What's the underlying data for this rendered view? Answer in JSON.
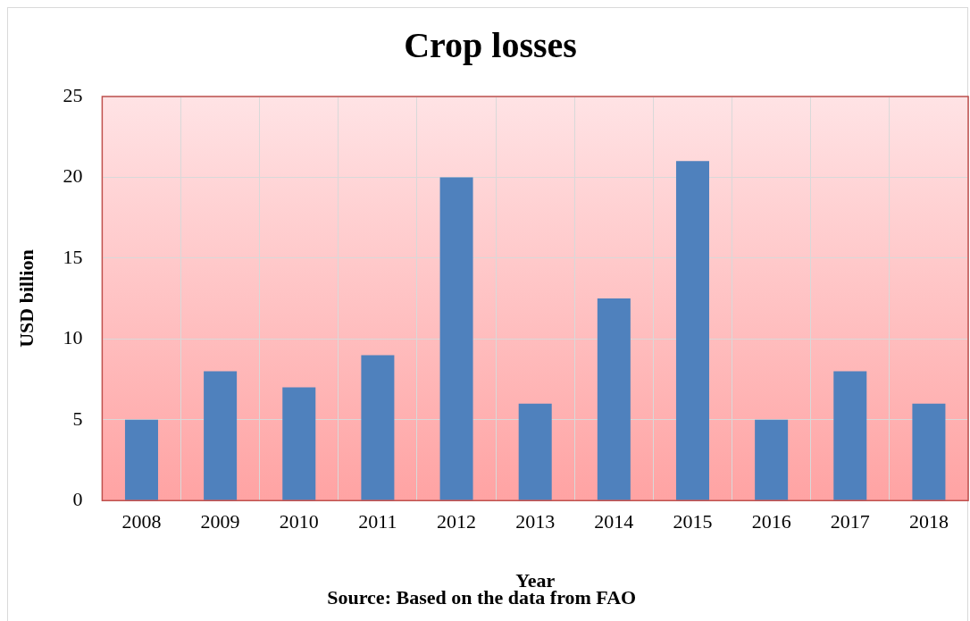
{
  "chart_data": {
    "type": "bar",
    "title": "Crop losses",
    "xlabel": "Year",
    "ylabel": "USD billion",
    "categories": [
      "2008",
      "2009",
      "2010",
      "2011",
      "2012",
      "2013",
      "2014",
      "2015",
      "2016",
      "2017",
      "2018"
    ],
    "values": [
      5,
      8,
      7,
      9,
      20,
      6,
      12.5,
      21,
      5,
      8,
      6
    ],
    "color": "#4f81bd",
    "ylim": [
      0,
      25
    ],
    "yticks": [
      0,
      5,
      10,
      15,
      20,
      25
    ],
    "grid": true,
    "legend": false,
    "annotations": [
      "Source: Based on the data from FAO"
    ]
  }
}
